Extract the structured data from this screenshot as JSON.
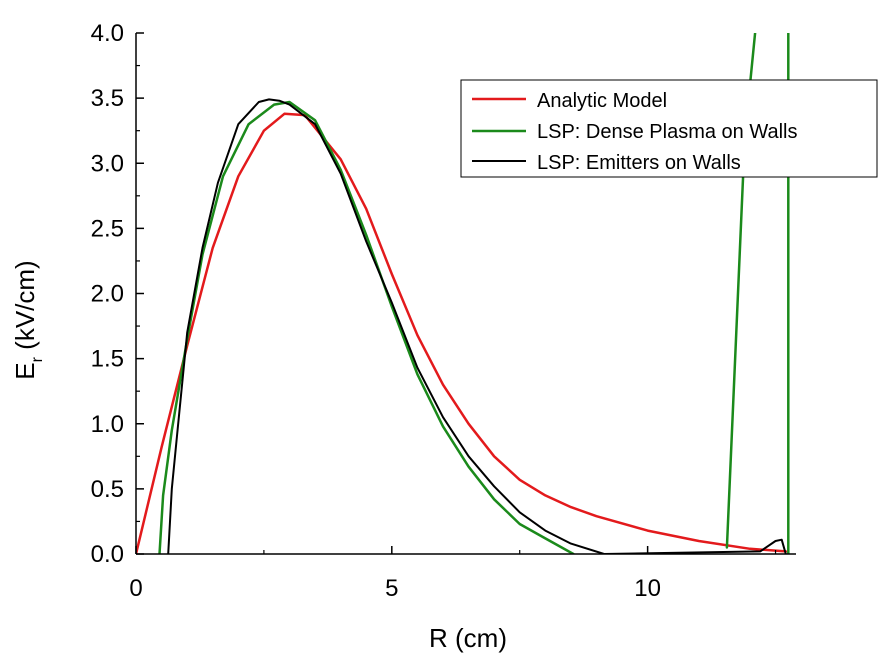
{
  "chart_data": {
    "type": "line",
    "xlabel": "R (cm)",
    "ylabel_main": "E",
    "ylabel_sub": "r",
    "ylabel_rest": " (kV/cm)",
    "xlim": [
      0,
      12.9
    ],
    "ylim": [
      0,
      4.0
    ],
    "xticks": [
      0,
      5,
      10
    ],
    "xtick_labels": [
      "0",
      "5",
      "10"
    ],
    "yticks": [
      0,
      0.5,
      1.0,
      1.5,
      2.0,
      2.5,
      3.0,
      3.5,
      4.0
    ],
    "ytick_labels": [
      "0.0",
      "0.5",
      "1.0",
      "1.5",
      "2.0",
      "2.5",
      "3.0",
      "3.5",
      "4.0"
    ],
    "legend_position": "top-right",
    "series": [
      {
        "name": "Analytic Model",
        "color": "#e31a1c",
        "x": [
          0,
          0.5,
          1.0,
          1.5,
          2.0,
          2.5,
          2.9,
          3.3,
          4.0,
          4.5,
          5.0,
          5.5,
          6.0,
          6.5,
          7.0,
          7.5,
          8.0,
          8.5,
          9.0,
          10.0,
          11.0,
          12.0,
          12.7
        ],
        "y": [
          0,
          0.82,
          1.6,
          2.35,
          2.9,
          3.25,
          3.38,
          3.37,
          3.03,
          2.65,
          2.15,
          1.68,
          1.3,
          1.0,
          0.75,
          0.57,
          0.45,
          0.36,
          0.29,
          0.18,
          0.1,
          0.04,
          0.02
        ]
      },
      {
        "name": "LSP: Dense Plasma on Walls",
        "color": "#1b8a1b",
        "x": [
          0.46,
          0.53,
          0.7,
          1.0,
          1.3,
          1.7,
          2.2,
          2.7,
          3.0,
          3.5,
          4.0,
          4.5,
          5.0,
          5.5,
          6.0,
          6.5,
          7.0,
          7.5,
          8.0,
          8.55,
          null,
          11.55,
          11.9,
          12.1,
          null,
          12.75,
          12.75
        ],
        "y": [
          0,
          0.45,
          0.95,
          1.65,
          2.3,
          2.9,
          3.3,
          3.45,
          3.47,
          3.33,
          2.95,
          2.45,
          1.9,
          1.38,
          0.98,
          0.67,
          0.42,
          0.23,
          0.12,
          0.0,
          null,
          0.05,
          3.2,
          4.0,
          null,
          4.0,
          0.0
        ]
      },
      {
        "name": "LSP: Emitters on Walls",
        "color": "#000000",
        "x": [
          0.63,
          0.7,
          0.8,
          1.0,
          1.3,
          1.6,
          2.0,
          2.4,
          2.6,
          2.8,
          3.0,
          3.5,
          4.0,
          4.5,
          5.0,
          5.5,
          6.0,
          6.5,
          7.0,
          7.5,
          8.0,
          8.5,
          9.15,
          12.2,
          12.5,
          12.62,
          12.7
        ],
        "y": [
          0,
          0.5,
          0.9,
          1.7,
          2.35,
          2.85,
          3.3,
          3.47,
          3.49,
          3.48,
          3.45,
          3.3,
          2.92,
          2.4,
          1.93,
          1.43,
          1.05,
          0.75,
          0.52,
          0.32,
          0.18,
          0.08,
          0.0,
          0.02,
          0.1,
          0.11,
          0.0
        ]
      }
    ]
  }
}
